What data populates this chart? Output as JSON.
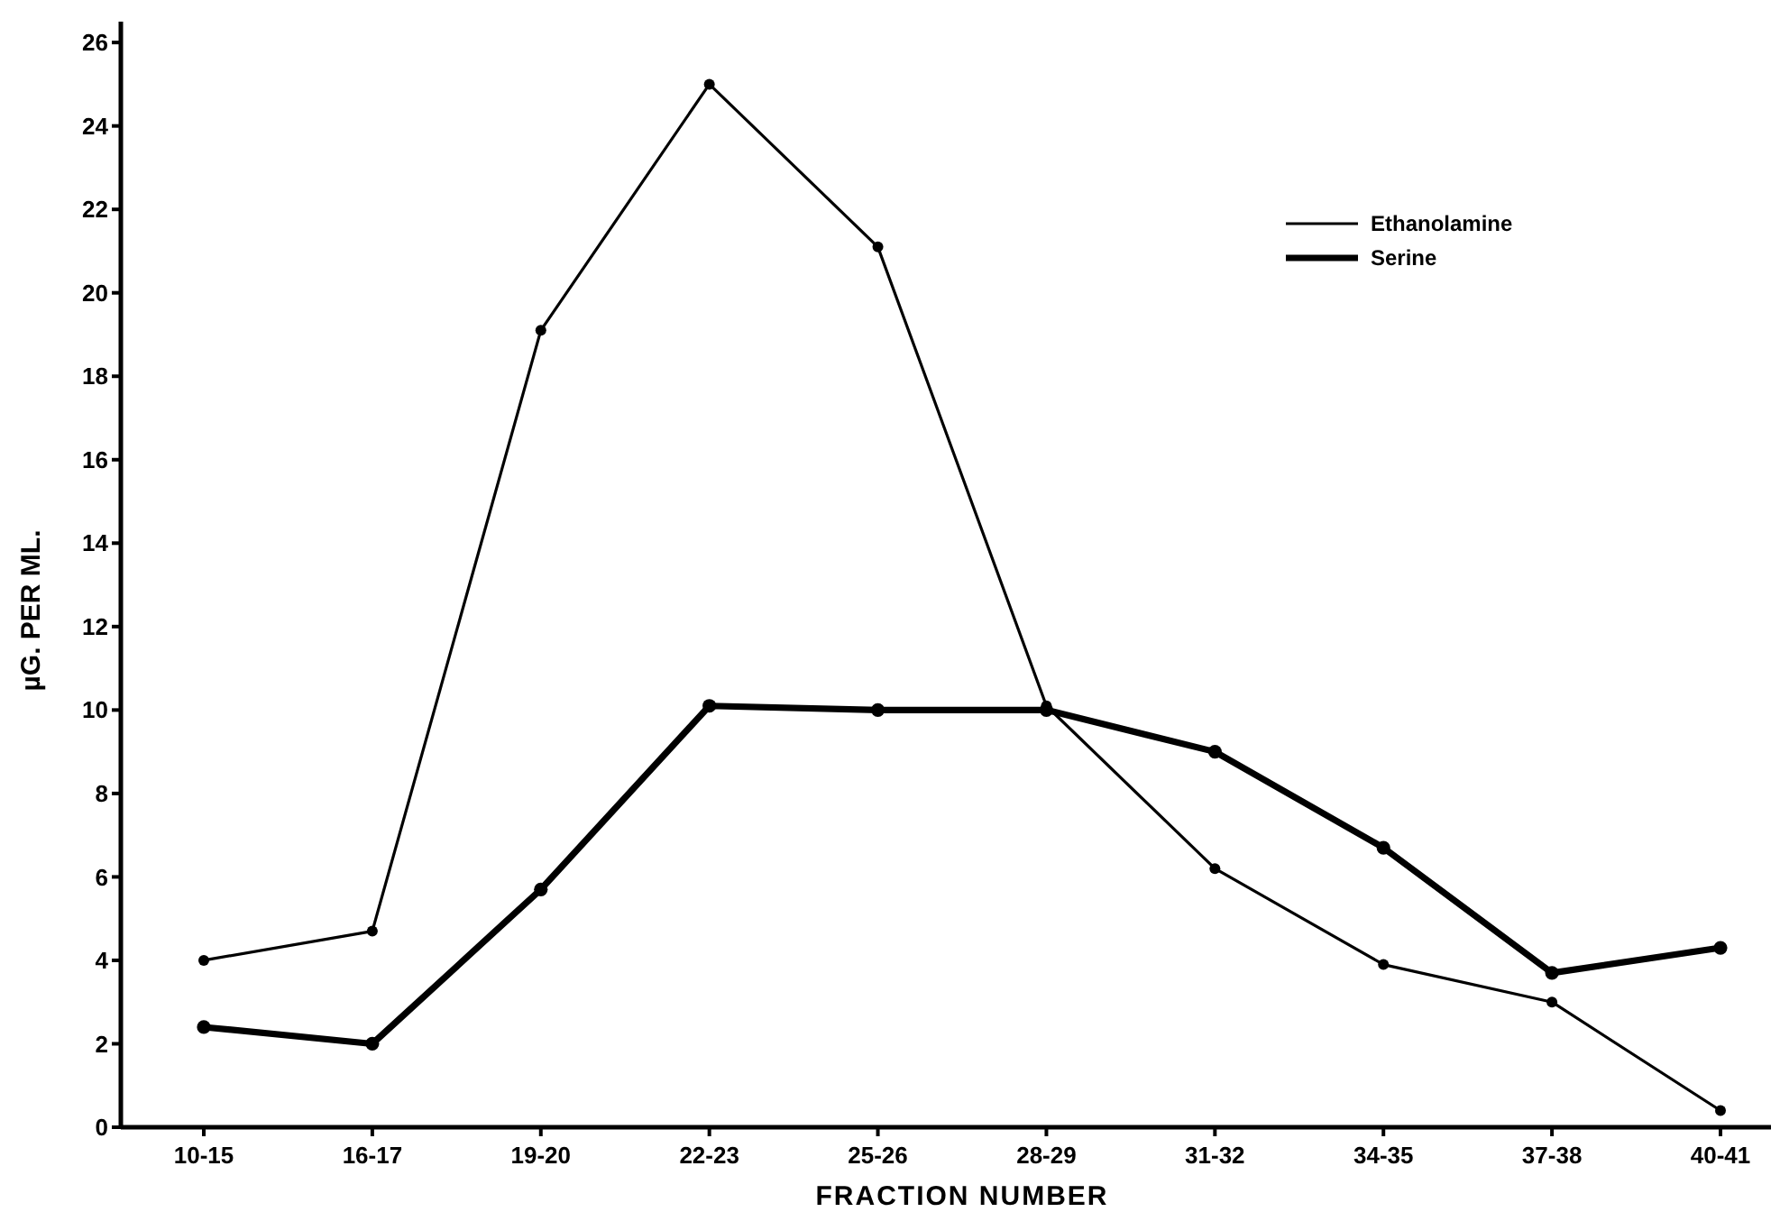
{
  "chart_data": {
    "type": "line",
    "xlabel": "FRACTION NUMBER",
    "ylabel": "µG. PER ML.",
    "categories": [
      "10-15",
      "16-17",
      "19-20",
      "22-23",
      "25-26",
      "28-29",
      "31-32",
      "34-35",
      "37-38",
      "40-41"
    ],
    "series": [
      {
        "name": "Ethanolamine",
        "color": "#000000",
        "values": [
          4.0,
          4.7,
          19.1,
          25.0,
          21.1,
          10.1,
          6.2,
          3.9,
          3.0,
          0.4
        ]
      },
      {
        "name": "Serine",
        "color": "#000000",
        "values": [
          2.4,
          2.0,
          5.7,
          10.1,
          10.0,
          10.0,
          9.0,
          6.7,
          3.7,
          4.3
        ]
      }
    ],
    "ylim": [
      0,
      26.5
    ],
    "yticks": [
      0,
      2,
      4,
      6,
      8,
      10,
      12,
      14,
      16,
      18,
      20,
      22,
      24,
      26
    ],
    "grid": false,
    "legend": "top right",
    "marker": "circle",
    "line_style": "solid"
  }
}
